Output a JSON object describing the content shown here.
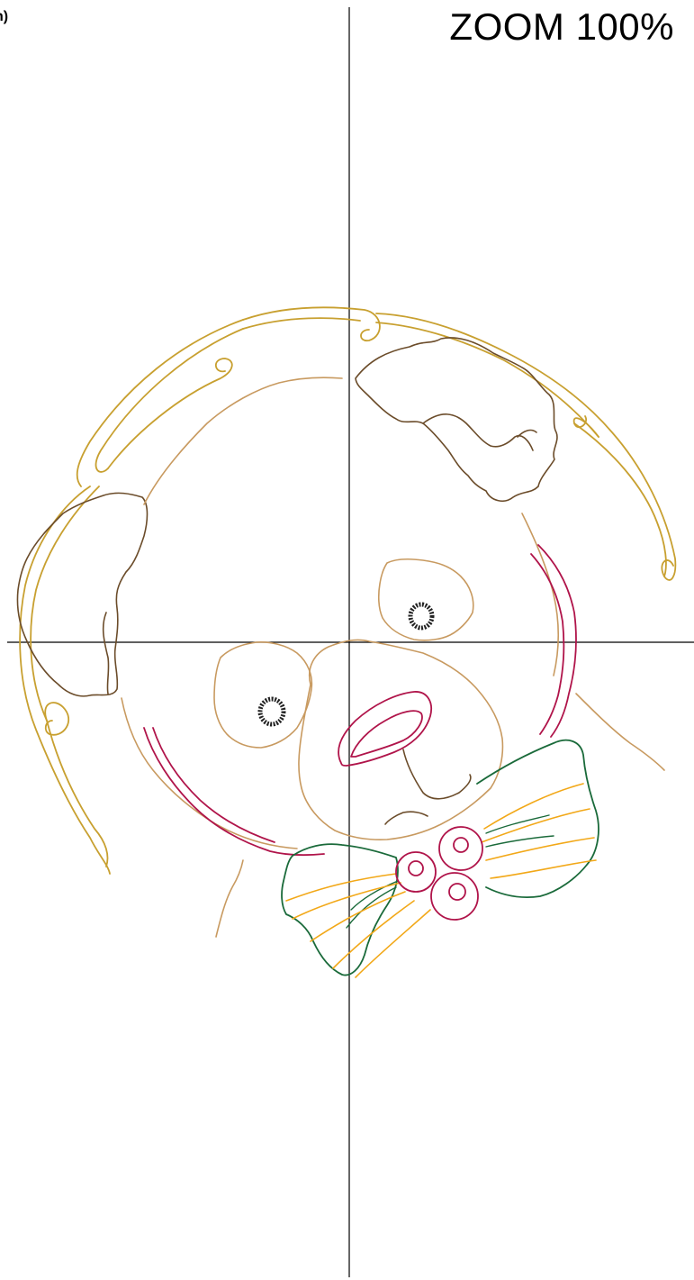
{
  "viewer": {
    "corner_label": "n)",
    "zoom_label": "ZOOM 100%"
  },
  "thread_colors": {
    "outline_gold": "#c8a030",
    "fur_brown": "#6b4c2a",
    "face_tan": "#c89a60",
    "collar_crimson": "#b0144a",
    "bow_green": "#1a6a3a",
    "bow_yellow": "#f2a818",
    "eye_black": "#222222",
    "crosshair": "#000000"
  }
}
